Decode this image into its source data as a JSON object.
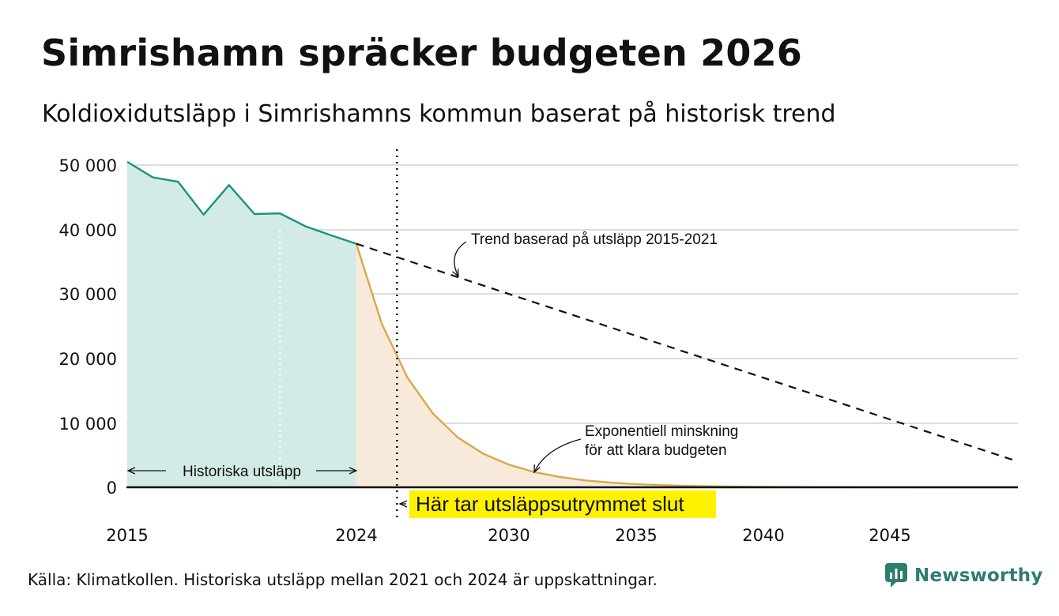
{
  "title": "Simrishamn spräcker budgeten 2026",
  "subtitle": "Koldioxidutsläpp i Simrishamns kommun baserat på historisk trend",
  "source": "Källa: Klimatkollen. Historiska utsläpp mellan 2021 och 2024 är uppskattningar.",
  "brand": "Newsworthy",
  "colors": {
    "historical_line": "#1a9282",
    "historical_fill": "#d3ebe6",
    "budget_line": "#d8a84a",
    "budget_fill": "#f8eadb",
    "trend_line": "#111111",
    "grid": "#dddddd",
    "highlight": "#fff200",
    "brand": "#2e7d70"
  },
  "chart_data": {
    "type": "area",
    "x_range": [
      2015,
      2050
    ],
    "ylim": [
      0,
      50000
    ],
    "x_ticks": [
      {
        "value": 2015,
        "label": "2015"
      },
      {
        "value": 2024,
        "label": "2024"
      },
      {
        "value": 2030,
        "label": "2030"
      },
      {
        "value": 2035,
        "label": "2035"
      },
      {
        "value": 2040,
        "label": "2040"
      },
      {
        "value": 2045,
        "label": "2045"
      }
    ],
    "y_ticks": [
      {
        "value": 0,
        "label": "0"
      },
      {
        "value": 10000,
        "label": "10 000"
      },
      {
        "value": 20000,
        "label": "20 000"
      },
      {
        "value": 30000,
        "label": "30 000"
      },
      {
        "value": 40000,
        "label": "40 000"
      },
      {
        "value": 50000,
        "label": "50 000"
      }
    ],
    "grid": true,
    "series": [
      {
        "name": "Historiska utsläpp",
        "style": "solid-area",
        "x": [
          2015,
          2016,
          2017,
          2018,
          2019,
          2020,
          2021,
          2022,
          2023,
          2024
        ],
        "values": [
          50500,
          48100,
          47400,
          42300,
          46900,
          42400,
          42500,
          40500,
          39100,
          37800
        ]
      },
      {
        "name": "Exponentiell minskning för att klara budgeten",
        "style": "solid-area",
        "x": [
          2024,
          2025,
          2026,
          2027,
          2028,
          2029,
          2030,
          2031,
          2032,
          2033,
          2034,
          2035,
          2036,
          2037,
          2038,
          2039,
          2040,
          2042,
          2045,
          2050
        ],
        "values": [
          37800,
          25400,
          17100,
          11500,
          7700,
          5200,
          3500,
          2350,
          1600,
          1070,
          720,
          480,
          330,
          220,
          150,
          100,
          70,
          30,
          8,
          0
        ]
      },
      {
        "name": "Trend baserad på utsläpp 2015-2021",
        "style": "dashed",
        "x": [
          2024,
          2050
        ],
        "values": [
          37800,
          4000
        ]
      }
    ],
    "reference_lines": [
      {
        "x": 2021,
        "style": "white-dotted"
      },
      {
        "x": 2025.6,
        "style": "black-dotted"
      }
    ],
    "annotations": {
      "historical_label": "Historiska utsläpp",
      "trend_label": "Trend baserad på utsläpp 2015-2021",
      "budget_label_line1": "Exponentiell minskning",
      "budget_label_line2": "för att klara budgeten",
      "budget_end_label": "Här tar utsläppsutrymmet slut"
    }
  }
}
